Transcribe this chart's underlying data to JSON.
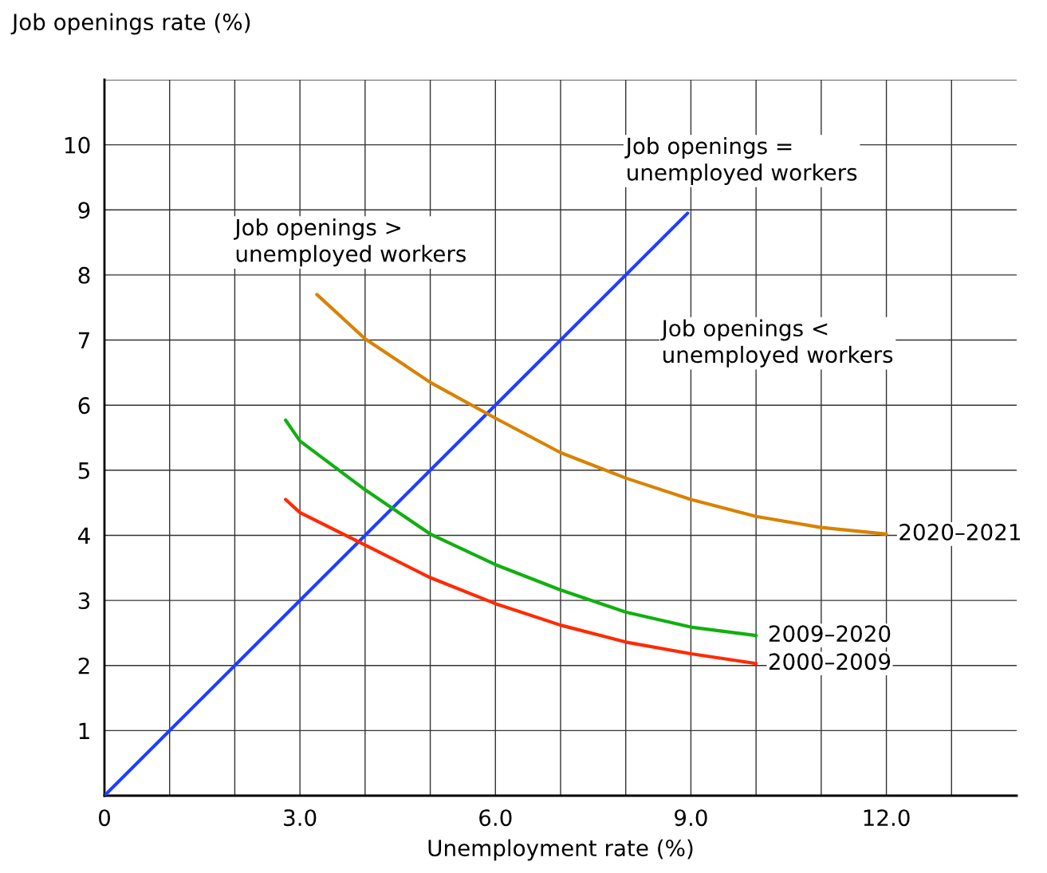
{
  "chart_data": {
    "type": "line",
    "xlabel": "Unemployment rate (%)",
    "ylabel": "Job openings rate (%)",
    "xlim": [
      0,
      14
    ],
    "ylim": [
      0,
      11
    ],
    "xticks": [
      0,
      {
        "value": 1,
        "label": null
      },
      {
        "value": 2,
        "label": null
      },
      {
        "value": 3,
        "label": "3.0"
      },
      {
        "value": 4,
        "label": null
      },
      {
        "value": 5,
        "label": null
      },
      {
        "value": 6,
        "label": "6.0"
      },
      {
        "value": 7,
        "label": null
      },
      {
        "value": 8,
        "label": null
      },
      {
        "value": 9,
        "label": "9.0"
      },
      {
        "value": 10,
        "label": null
      },
      {
        "value": 11,
        "label": null
      },
      {
        "value": 12,
        "label": "12.0"
      },
      {
        "value": 13,
        "label": null
      }
    ],
    "yticks": [
      1,
      2,
      3,
      4,
      5,
      6,
      7,
      8,
      9,
      10,
      {
        "value": 11,
        "label": null
      }
    ],
    "grid": true,
    "legend": false,
    "marker": "none",
    "line_style": "solid",
    "series": [
      {
        "color": "#1f3fff",
        "x": [
          0,
          8.95
        ],
        "values": [
          0,
          8.95
        ]
      },
      {
        "name": "2020–2021",
        "color": "#d98200",
        "x": [
          3.26,
          4,
          5,
          6,
          7,
          8,
          9,
          10,
          11,
          12
        ],
        "values": [
          7.7,
          7.02,
          6.35,
          5.8,
          5.27,
          4.88,
          4.55,
          4.29,
          4.12,
          4.02
        ]
      },
      {
        "name": "2009–2020",
        "color": "#10b010",
        "x": [
          2.78,
          3,
          4,
          5,
          6,
          7,
          8,
          9,
          10
        ],
        "values": [
          5.77,
          5.45,
          4.7,
          4.02,
          3.55,
          3.16,
          2.82,
          2.59,
          2.46
        ]
      },
      {
        "name": "2000–2009",
        "color": "#ff2a00",
        "x": [
          2.78,
          3,
          4,
          5,
          6,
          7,
          8,
          9,
          10
        ],
        "values": [
          4.55,
          4.35,
          3.85,
          3.35,
          2.95,
          2.62,
          2.36,
          2.18,
          2.03
        ]
      }
    ],
    "annotations": [
      "Job openings =\nunemployed workers",
      "Job openings >\nunemployed workers",
      "Job openings <\nunemployed workers"
    ]
  }
}
